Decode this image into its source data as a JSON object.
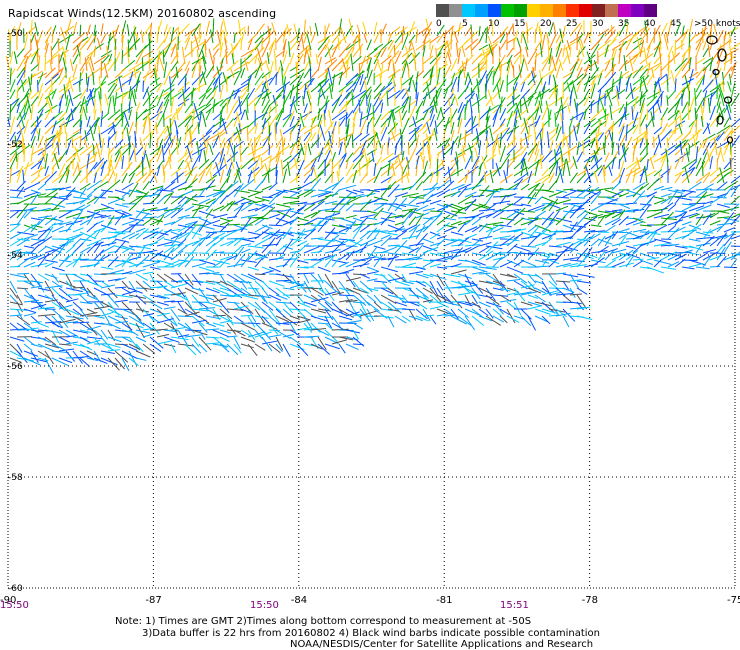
{
  "title": "Rapidscat Winds(12.5KM) 20160802 ascending",
  "legend": {
    "units": ">50 knots",
    "colors": [
      "#505050",
      "#909090",
      "#00c8ff",
      "#00a0ff",
      "#0050ff",
      "#00c000",
      "#00a000",
      "#ffd000",
      "#ffb000",
      "#ff8000",
      "#ff3000",
      "#e00000",
      "#802020",
      "#c07050",
      "#c000c0",
      "#8000c0",
      "#600080"
    ],
    "tick_labels": [
      "0",
      "5",
      "10",
      "15",
      "20",
      "25",
      "30",
      "35",
      "40",
      "45"
    ]
  },
  "map": {
    "lon_labels": [
      "-90",
      "-87",
      "-84",
      "-81",
      "-78",
      "-75"
    ],
    "lat_labels": [
      "-50",
      "-52",
      "-54",
      "-56",
      "-58",
      "-60"
    ],
    "times": [
      "15:50",
      "15:50",
      "15:51"
    ]
  },
  "notes": {
    "line1": "Note: 1) Times are GMT 2)Times along bottom correspond to measurement at -50S",
    "line2": "3)Data buffer is 22 hrs from 20160802 4) Black wind barbs indicate possible contamination",
    "line3": "NOAA/NESDIS/Center for Satellite Applications and Research"
  }
}
